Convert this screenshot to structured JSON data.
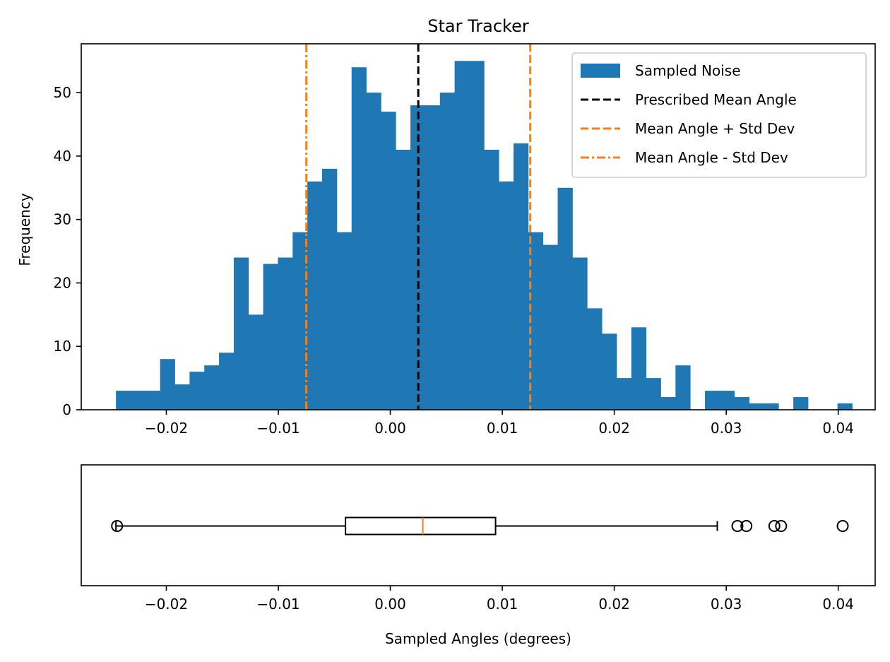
{
  "chart_data": [
    {
      "type": "bar",
      "title": "Star Tracker",
      "xlabel": "",
      "ylabel": "Frequency",
      "xlim": [
        -0.0276,
        0.0433
      ],
      "ylim": [
        0,
        57.7
      ],
      "x_ticks": [
        -0.02,
        -0.01,
        0.0,
        0.01,
        0.02,
        0.03,
        0.04
      ],
      "x_tick_labels": [
        "−0.02",
        "−0.01",
        "0.00",
        "0.01",
        "0.02",
        "0.03",
        "0.04"
      ],
      "y_ticks": [
        0,
        10,
        20,
        30,
        40,
        50
      ],
      "y_tick_labels": [
        "0",
        "10",
        "20",
        "30",
        "40",
        "50"
      ],
      "bins": {
        "start": -0.0245,
        "width": 0.001315,
        "counts": [
          3,
          3,
          3,
          8,
          4,
          6,
          7,
          9,
          24,
          15,
          23,
          24,
          28,
          36,
          38,
          28,
          54,
          50,
          47,
          41,
          48,
          48,
          50,
          55,
          55,
          41,
          36,
          42,
          28,
          26,
          35,
          24,
          16,
          12,
          5,
          13,
          5,
          2,
          7,
          0,
          3,
          3,
          2,
          1,
          1,
          0,
          2,
          0,
          0,
          1
        ]
      },
      "series": [
        {
          "name": "Sampled Noise",
          "color": "#1f77b4",
          "kind": "histogram"
        },
        {
          "name": "Prescribed Mean Angle",
          "color": "#000000",
          "kind": "vline",
          "x": 0.0025,
          "style": "dashed"
        },
        {
          "name": "Mean Angle + Std Dev",
          "color": "#ff7f0e",
          "kind": "vline",
          "x": 0.0125,
          "style": "dashed"
        },
        {
          "name": "Mean Angle - Std Dev",
          "color": "#ff7f0e",
          "kind": "vline",
          "x": -0.0075,
          "style": "dashdot"
        }
      ],
      "legend_placement": "top-right"
    },
    {
      "type": "boxplot",
      "orientation": "horizontal",
      "xlabel": "Sampled Angles (degrees)",
      "xlim": [
        -0.0276,
        0.0433
      ],
      "x_ticks": [
        -0.02,
        -0.01,
        0.0,
        0.01,
        0.02,
        0.03,
        0.04
      ],
      "x_tick_labels": [
        "−0.02",
        "−0.01",
        "0.00",
        "0.01",
        "0.02",
        "0.03",
        "0.04"
      ],
      "whisker_low": -0.0245,
      "q1": -0.004,
      "median": 0.0029,
      "q3": 0.0094,
      "whisker_high": 0.0292,
      "outliers": [
        -0.0244,
        0.031,
        0.0318,
        0.0343,
        0.0349,
        0.0404
      ],
      "box_color": "#000000",
      "median_color": "#ff7f0e"
    }
  ]
}
